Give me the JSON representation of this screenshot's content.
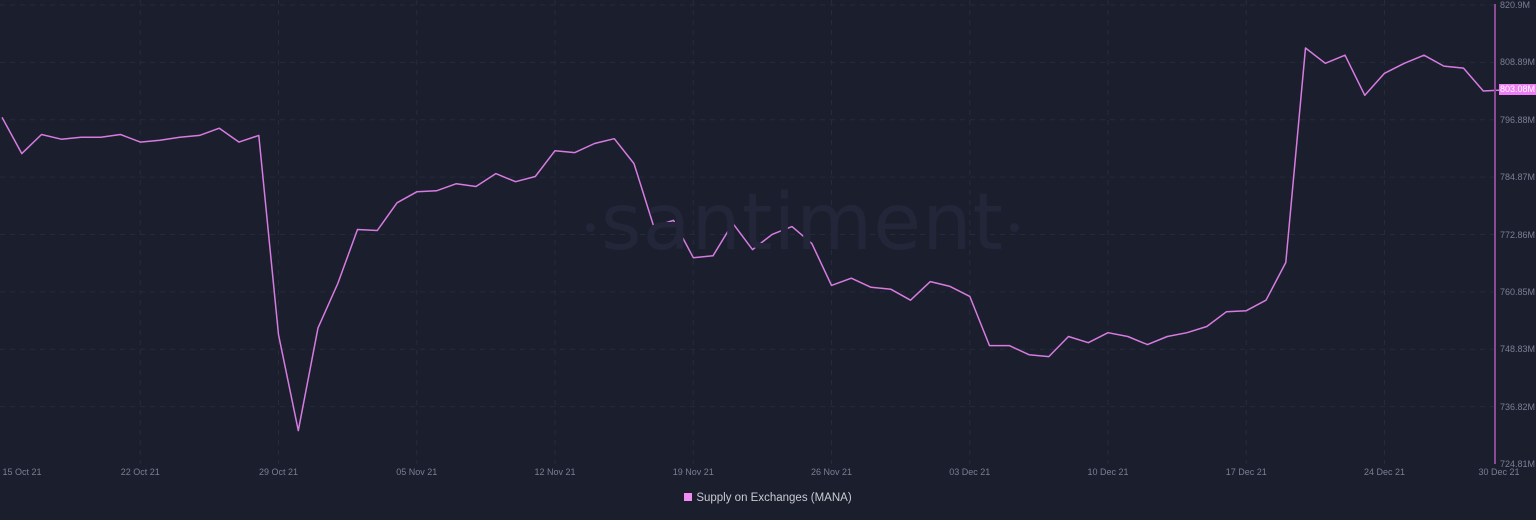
{
  "chart_data": {
    "type": "line",
    "title": "",
    "xlabel": "",
    "ylabel": "",
    "series": [
      {
        "name": "Supply on Exchanges (MANA)",
        "color": "#d67ce0",
        "start_date": "2021-10-15",
        "end_date": "2021-12-30",
        "interval": "1d",
        "values_millions": [
          797.4,
          789.8,
          793.8,
          792.8,
          793.2,
          793.2,
          793.8,
          792.2,
          792.6,
          793.2,
          793.6,
          795.1,
          792.2,
          793.6,
          751.9,
          731.8,
          753.3,
          762.6,
          773.9,
          773.7,
          779.5,
          781.8,
          782.0,
          783.5,
          782.9,
          785.6,
          783.9,
          785.0,
          790.4,
          790.0,
          791.9,
          792.9,
          787.7,
          774.5,
          775.8,
          768.0,
          768.4,
          775.2,
          769.7,
          772.9,
          774.5,
          771.0,
          762.2,
          763.7,
          761.8,
          761.4,
          759.1,
          763.0,
          762.0,
          759.9,
          749.6,
          749.6,
          747.7,
          747.3,
          751.5,
          750.2,
          752.3,
          751.5,
          749.8,
          751.5,
          752.3,
          753.6,
          756.7,
          756.9,
          759.1,
          767.0,
          811.9,
          808.7,
          810.4,
          802.0,
          806.6,
          808.7,
          810.4,
          808.1,
          807.7,
          802.9,
          803.1
        ]
      }
    ],
    "x_tick_labels": [
      "15 Oct 21",
      "22 Oct 21",
      "29 Oct 21",
      "05 Nov 21",
      "12 Nov 21",
      "19 Nov 21",
      "26 Nov 21",
      "03 Dec 21",
      "10 Dec 21",
      "17 Dec 21",
      "24 Dec 21",
      "30 Dec 21"
    ],
    "y_tick_labels": [
      "820.9M",
      "808.89M",
      "796.88M",
      "784.87M",
      "772.86M",
      "760.85M",
      "748.83M",
      "736.82M",
      "724.81M"
    ],
    "ylim": [
      724.81,
      820.9
    ],
    "last_value_label": "803.08M",
    "grid": true,
    "legend_position": "bottom-center",
    "watermark": "santiment"
  },
  "legend": {
    "label": "Supply on Exchanges (MANA)",
    "swatch_color": "#f08cf2"
  },
  "colors": {
    "background": "#1b1e2d",
    "grid": "#262a3b",
    "line": "#d67ce0",
    "axis_line": "#8b4a96",
    "tick_text": "#7a7f93",
    "badge": "#ef7ef4"
  }
}
